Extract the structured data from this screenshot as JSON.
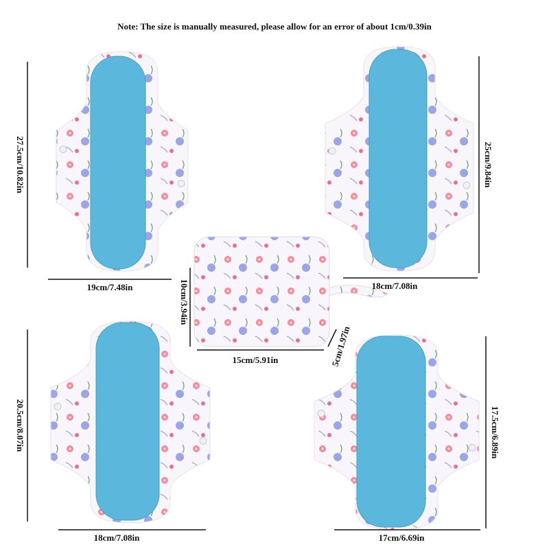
{
  "note": "Note: The size is manually measured, please allow for an error of about 1cm/0.39in",
  "pads": [
    {
      "height": "27.5cm/10.82in",
      "width": "19cm/7.48in"
    },
    {
      "height": "25cm/9.84in",
      "width": "18cm/7.08in"
    },
    {
      "height": "20.5cm/8.07in",
      "width": "18cm/7.08in"
    },
    {
      "height": "17.5cm/6.89in",
      "width": "17cm/6.69in"
    }
  ],
  "bag": {
    "height": "10cm/3.94in",
    "width": "15cm/5.91in",
    "depth": "5cm/1.97in"
  }
}
